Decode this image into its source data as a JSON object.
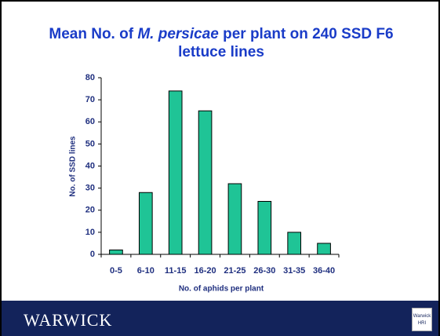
{
  "chart_data": {
    "type": "bar",
    "title": [
      "Mean No. of ",
      "M. persicae",
      " per plant on 240 SSD F6 lettuce lines"
    ],
    "categories": [
      "0-5",
      "6-10",
      "11-15",
      "16-20",
      "21-25",
      "26-30",
      "31-35",
      "36-40"
    ],
    "values": [
      2,
      28,
      74,
      65,
      32,
      24,
      10,
      5
    ],
    "color": "#1fc496",
    "ylim": [
      0,
      80
    ],
    "yticks": [
      0,
      10,
      20,
      30,
      40,
      50,
      60,
      70,
      80
    ],
    "x_label": "No. of aphids per plant",
    "y_label": "No. of SSD lines"
  },
  "footer": {
    "brand": "WARWICK",
    "logo": [
      "Warwick",
      "HRI"
    ]
  }
}
